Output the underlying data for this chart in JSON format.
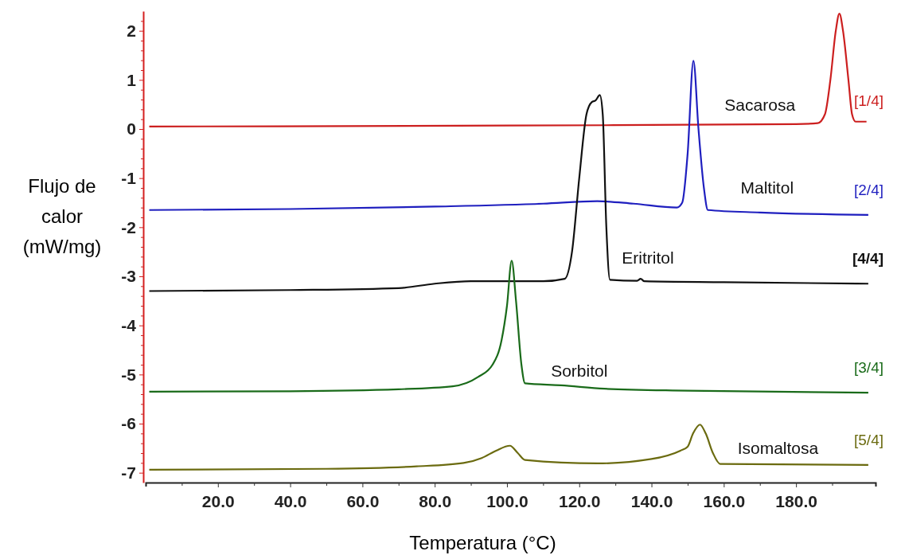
{
  "chart_data": {
    "type": "line",
    "xlabel": "Temperatura (°C)",
    "ylabel": "Flujo de calor (mW/mg)",
    "xlim": [
      0,
      202
    ],
    "ylim": [
      -7.2,
      2.4
    ],
    "xticks": [
      {
        "value": 10,
        "label": null
      },
      {
        "value": 20,
        "label": "20.0"
      },
      {
        "value": 30,
        "label": null
      },
      {
        "value": 40,
        "label": "40.0"
      },
      {
        "value": 50,
        "label": null
      },
      {
        "value": 60,
        "label": "60.0"
      },
      {
        "value": 70,
        "label": null
      },
      {
        "value": 80,
        "label": "80.0"
      },
      {
        "value": 90,
        "label": null
      },
      {
        "value": 100,
        "label": "100.0"
      },
      {
        "value": 110,
        "label": null
      },
      {
        "value": 120,
        "label": "120.0"
      },
      {
        "value": 130,
        "label": null
      },
      {
        "value": 140,
        "label": "140.0"
      },
      {
        "value": 150,
        "label": null
      },
      {
        "value": 160,
        "label": "160.0"
      },
      {
        "value": 170,
        "label": null
      },
      {
        "value": 180,
        "label": "180.0"
      },
      {
        "value": 190,
        "label": null
      }
    ],
    "yticks": [
      -7,
      {
        "value": -6.8,
        "label": null
      },
      {
        "value": -6.6,
        "label": null
      },
      {
        "value": -6.4,
        "label": null
      },
      {
        "value": -6.2,
        "label": null
      },
      -6,
      {
        "value": -5.8,
        "label": null
      },
      {
        "value": -5.6,
        "label": null
      },
      {
        "value": -5.4,
        "label": null
      },
      {
        "value": -5.2,
        "label": null
      },
      -5,
      {
        "value": -4.8,
        "label": null
      },
      {
        "value": -4.6,
        "label": null
      },
      {
        "value": -4.4,
        "label": null
      },
      {
        "value": -4.2,
        "label": null
      },
      -4,
      {
        "value": -3.8,
        "label": null
      },
      {
        "value": -3.6,
        "label": null
      },
      {
        "value": -3.4,
        "label": null
      },
      {
        "value": -3.2,
        "label": null
      },
      -3,
      {
        "value": -2.8,
        "label": null
      },
      {
        "value": -2.6,
        "label": null
      },
      {
        "value": -2.4,
        "label": null
      },
      {
        "value": -2.2,
        "label": null
      },
      -2,
      {
        "value": -1.8,
        "label": null
      },
      {
        "value": -1.6,
        "label": null
      },
      {
        "value": -1.4,
        "label": null
      },
      {
        "value": -1.2,
        "label": null
      },
      -1,
      {
        "value": -0.8,
        "label": null
      },
      {
        "value": -0.6,
        "label": null
      },
      {
        "value": -0.4,
        "label": null
      },
      {
        "value": -0.2,
        "label": null
      },
      0,
      {
        "value": 0.2,
        "label": null
      },
      {
        "value": 0.4,
        "label": null
      },
      {
        "value": 0.6,
        "label": null
      },
      {
        "value": 0.8,
        "label": null
      },
      1,
      {
        "value": 1.2,
        "label": null
      },
      {
        "value": 1.4,
        "label": null
      },
      {
        "value": 1.6,
        "label": null
      },
      {
        "value": 1.8,
        "label": null
      },
      2,
      {
        "value": 2.2,
        "label": null
      }
    ],
    "grid": false,
    "marker": "none",
    "line_style": "solid",
    "series": [
      {
        "name": "Sacarosa",
        "color": "#cc1f1f",
        "x": [
          1,
          100,
          180,
          186,
          188,
          189.5,
          191,
          192,
          193,
          194.5,
          195.5,
          196.5,
          199.5
        ],
        "values": [
          0.05,
          0.07,
          0.1,
          0.12,
          0.3,
          1.0,
          2.0,
          2.35,
          2.0,
          1.0,
          0.3,
          0.15,
          0.15
        ]
      },
      {
        "name": "Maltitol",
        "color": "#1f1fbf",
        "x": [
          1,
          40,
          80,
          110,
          125,
          135,
          147,
          148.5,
          150,
          151.6,
          153,
          154.5,
          155.6,
          170,
          200
        ],
        "values": [
          -1.65,
          -1.63,
          -1.58,
          -1.52,
          -1.47,
          -1.52,
          -1.6,
          -1.5,
          -0.5,
          1.39,
          0,
          -1.2,
          -1.65,
          -1.7,
          -1.75
        ]
      },
      {
        "name": "Eritritol",
        "color": "#111111",
        "x": [
          1,
          40,
          70,
          80,
          90,
          110,
          116,
          118,
          120,
          122,
          123.5,
          124.5,
          125.7,
          126.5,
          127.5,
          128.5,
          136,
          137,
          138,
          160,
          200
        ],
        "values": [
          -3.3,
          -3.28,
          -3.24,
          -3.15,
          -3.1,
          -3.1,
          -3.05,
          -2.5,
          -1,
          0.3,
          0.55,
          0.58,
          0.69,
          0.3,
          -2,
          -3.07,
          -3.09,
          -3.05,
          -3.1,
          -3.12,
          -3.15
        ]
      },
      {
        "name": "Sorbitol",
        "color": "#1a6b1a",
        "x": [
          1,
          40,
          70,
          85,
          92,
          96,
          98.5,
          100,
          101.3,
          102.5,
          104,
          105,
          115,
          127,
          150,
          200
        ],
        "values": [
          -5.35,
          -5.34,
          -5.3,
          -5.24,
          -5.05,
          -4.8,
          -4.3,
          -3.6,
          -2.68,
          -3.5,
          -4.8,
          -5.18,
          -5.22,
          -5.29,
          -5.33,
          -5.37
        ]
      },
      {
        "name": "Isomaltosa",
        "color": "#6b6b10",
        "x": [
          1,
          50,
          75,
          88,
          93,
          97,
          100.8,
          103,
          105,
          125,
          140,
          148,
          150,
          151.5,
          153.4,
          155,
          157,
          159,
          200
        ],
        "values": [
          -6.94,
          -6.92,
          -6.87,
          -6.8,
          -6.7,
          -6.55,
          -6.45,
          -6.6,
          -6.74,
          -6.81,
          -6.72,
          -6.55,
          -6.47,
          -6.2,
          -6.02,
          -6.2,
          -6.6,
          -6.82,
          -6.84
        ]
      }
    ],
    "annotations": [
      "[1/4]",
      "[2/4]",
      "[4/4]",
      "[3/4]",
      "[5/4]"
    ]
  }
}
